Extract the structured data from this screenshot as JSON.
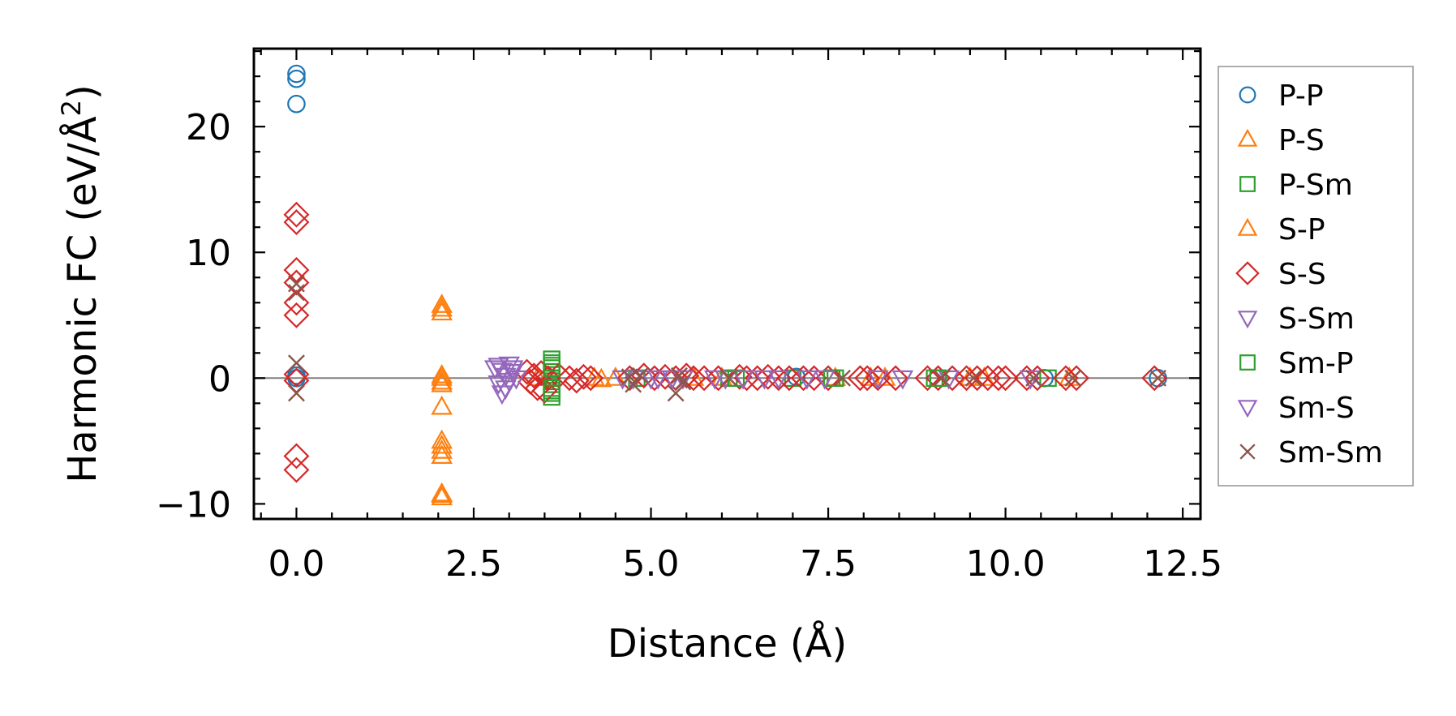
{
  "chart_data": {
    "type": "scatter",
    "title": "",
    "xlabel": "Distance (Å)",
    "ylabel_main": "Harmonic FC (eV/Å",
    "ylabel_sup": "2",
    "ylabel_close": ")",
    "xlim": [
      -0.6,
      12.75
    ],
    "ylim": [
      -11.2,
      26.2
    ],
    "xticks": [
      0.0,
      2.5,
      5.0,
      7.5,
      10.0,
      12.5
    ],
    "xtick_labels": [
      "0.0",
      "2.5",
      "5.0",
      "7.5",
      "10.0",
      "12.5"
    ],
    "yticks": [
      -10,
      0,
      10,
      20
    ],
    "ytick_labels": [
      "−10",
      "0",
      "10",
      "20"
    ],
    "zero_line": true,
    "legend_position": "right, outside plot",
    "series": [
      {
        "name": "P-P",
        "marker": "circle",
        "color": "#1f77b4",
        "points": [
          [
            0,
            24.2
          ],
          [
            0,
            23.8
          ],
          [
            0,
            21.8
          ],
          [
            0,
            0.2
          ],
          [
            0,
            0
          ],
          [
            7.05,
            0.1
          ],
          [
            10.55,
            0
          ],
          [
            12.15,
            0
          ]
        ]
      },
      {
        "name": "P-S",
        "marker": "triangle-up",
        "color": "#ff7f0e",
        "points": [
          [
            2.05,
            5.8
          ],
          [
            2.05,
            5.2
          ],
          [
            2.05,
            0.2
          ],
          [
            2.05,
            -0.3
          ],
          [
            2.05,
            -2.3
          ],
          [
            2.05,
            -5
          ],
          [
            2.05,
            -5.8
          ],
          [
            2.05,
            -6.2
          ],
          [
            2.05,
            -9.2
          ],
          [
            2.05,
            -9.5
          ],
          [
            3.4,
            0
          ],
          [
            4.3,
            -0.1
          ],
          [
            4.5,
            0
          ],
          [
            6.0,
            0
          ],
          [
            7.6,
            0
          ],
          [
            8.1,
            0
          ],
          [
            9.7,
            0
          ],
          [
            10.9,
            0
          ]
        ]
      },
      {
        "name": "P-Sm",
        "marker": "square",
        "color": "#2ca02c",
        "points": [
          [
            3.6,
            1.5
          ],
          [
            3.6,
            1.0
          ],
          [
            3.6,
            0.5
          ],
          [
            3.6,
            0
          ],
          [
            3.6,
            -0.5
          ],
          [
            3.6,
            -1.0
          ],
          [
            3.6,
            -1.5
          ],
          [
            4.8,
            0
          ],
          [
            6.1,
            0
          ],
          [
            7.0,
            0
          ],
          [
            7.6,
            0
          ],
          [
            9.0,
            0
          ],
          [
            10.6,
            0
          ]
        ]
      },
      {
        "name": "S-P",
        "marker": "triangle-up",
        "color": "#ff7f0e",
        "points": [
          [
            2.05,
            5.5
          ],
          [
            2.05,
            0
          ],
          [
            2.05,
            -0.5
          ],
          [
            2.05,
            -5.4
          ],
          [
            2.05,
            -9.3
          ],
          [
            4.2,
            0
          ],
          [
            5.6,
            0
          ],
          [
            8.3,
            0
          ],
          [
            9.5,
            0
          ]
        ]
      },
      {
        "name": "S-S",
        "marker": "diamond",
        "color": "#d62728",
        "points": [
          [
            0,
            13
          ],
          [
            0,
            12.4
          ],
          [
            0,
            8.6
          ],
          [
            0,
            7.6
          ],
          [
            0,
            6
          ],
          [
            0,
            5
          ],
          [
            0,
            0.3
          ],
          [
            0,
            -0.2
          ],
          [
            0,
            -6.2
          ],
          [
            0,
            -7.3
          ],
          [
            3.25,
            0.5
          ],
          [
            3.3,
            -0.3
          ],
          [
            3.35,
            0.2
          ],
          [
            3.4,
            -0.8
          ],
          [
            3.45,
            0.4
          ],
          [
            3.5,
            -1
          ],
          [
            3.55,
            0
          ],
          [
            3.7,
            0.2
          ],
          [
            3.85,
            0
          ],
          [
            3.95,
            -0.2
          ],
          [
            4.05,
            0.1
          ],
          [
            4.15,
            0
          ],
          [
            4.7,
            0
          ],
          [
            4.9,
            0.2
          ],
          [
            5.05,
            0
          ],
          [
            5.2,
            0.1
          ],
          [
            5.35,
            0
          ],
          [
            5.5,
            0.2
          ],
          [
            5.6,
            0
          ],
          [
            5.75,
            0
          ],
          [
            5.95,
            0
          ],
          [
            6.25,
            0.1
          ],
          [
            6.35,
            0
          ],
          [
            6.5,
            0
          ],
          [
            6.65,
            0.1
          ],
          [
            6.8,
            0
          ],
          [
            6.95,
            0
          ],
          [
            7.15,
            0
          ],
          [
            7.3,
            0
          ],
          [
            7.5,
            0
          ],
          [
            7.95,
            0
          ],
          [
            8.05,
            0
          ],
          [
            8.2,
            0
          ],
          [
            8.45,
            0
          ],
          [
            8.9,
            0
          ],
          [
            9.05,
            0
          ],
          [
            9.25,
            0
          ],
          [
            9.45,
            0
          ],
          [
            9.6,
            0
          ],
          [
            9.75,
            0
          ],
          [
            9.9,
            0
          ],
          [
            10.0,
            0
          ],
          [
            10.3,
            0
          ],
          [
            10.45,
            0
          ],
          [
            10.85,
            0
          ],
          [
            11.0,
            0
          ],
          [
            12.1,
            0
          ]
        ]
      },
      {
        "name": "S-Sm",
        "marker": "triangle-down",
        "color": "#9467bd",
        "points": [
          [
            2.85,
            1.0
          ],
          [
            2.9,
            0.6
          ],
          [
            2.95,
            0.2
          ],
          [
            3.0,
            -0.2
          ],
          [
            3.05,
            0.8
          ],
          [
            2.9,
            -1.2
          ],
          [
            3.1,
            0
          ],
          [
            4.6,
            0
          ],
          [
            5.0,
            0
          ],
          [
            5.3,
            0
          ],
          [
            6.05,
            0
          ],
          [
            6.6,
            0
          ],
          [
            7.2,
            0
          ],
          [
            8.2,
            0
          ],
          [
            9.2,
            0
          ]
        ]
      },
      {
        "name": "Sm-P",
        "marker": "square",
        "color": "#2ca02c",
        "points": [
          [
            3.6,
            1.2
          ],
          [
            3.6,
            -1.2
          ],
          [
            3.6,
            0.8
          ],
          [
            3.6,
            -0.8
          ],
          [
            6.2,
            0
          ],
          [
            7.55,
            0
          ],
          [
            9.05,
            0
          ]
        ]
      },
      {
        "name": "Sm-S",
        "marker": "triangle-down",
        "color": "#9467bd",
        "points": [
          [
            2.8,
            0.8
          ],
          [
            2.85,
            -0.4
          ],
          [
            2.95,
            -0.8
          ],
          [
            3.05,
            0.5
          ],
          [
            3.0,
            1.1
          ],
          [
            4.75,
            0
          ],
          [
            5.1,
            0
          ],
          [
            5.45,
            0
          ],
          [
            5.9,
            0
          ],
          [
            6.3,
            0
          ],
          [
            6.8,
            0
          ],
          [
            7.45,
            0
          ],
          [
            8.55,
            0
          ],
          [
            10.35,
            0
          ]
        ]
      },
      {
        "name": "Sm-Sm",
        "marker": "x",
        "color": "#8c564b",
        "points": [
          [
            0,
            7.5
          ],
          [
            0,
            6.8
          ],
          [
            0,
            1.2
          ],
          [
            0,
            -1.2
          ],
          [
            4.7,
            0.1
          ],
          [
            4.75,
            -0.5
          ],
          [
            4.85,
            0.2
          ],
          [
            5.35,
            -1.2
          ],
          [
            5.4,
            0.2
          ],
          [
            5.45,
            -0.3
          ],
          [
            6.1,
            0
          ],
          [
            7.7,
            0
          ],
          [
            9.1,
            0
          ],
          [
            9.55,
            0
          ],
          [
            10.4,
            0
          ],
          [
            10.95,
            0
          ],
          [
            12.15,
            0
          ]
        ]
      }
    ]
  }
}
